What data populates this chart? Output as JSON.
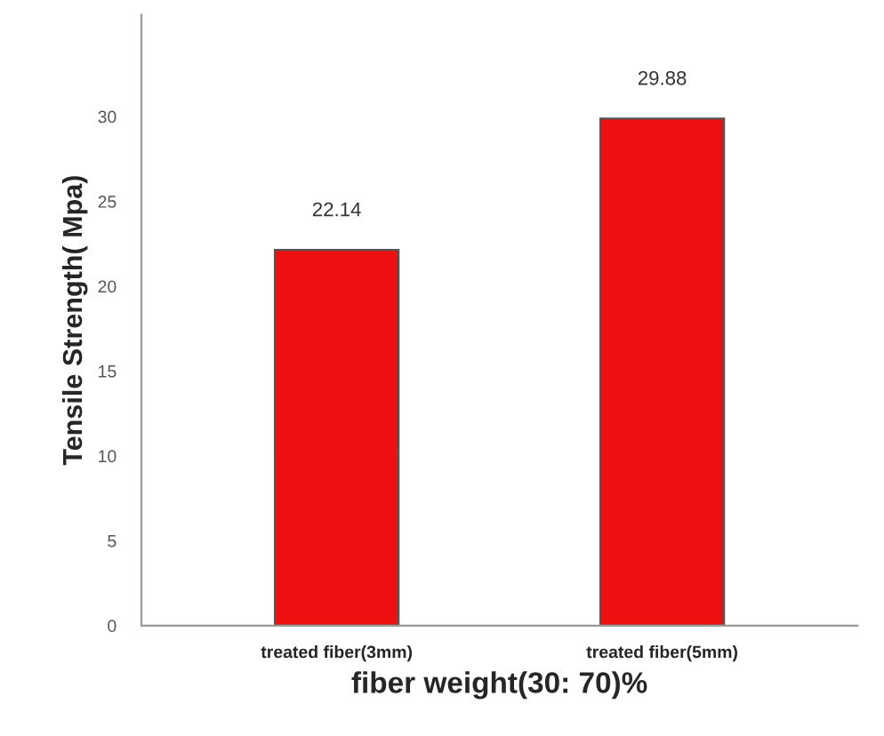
{
  "chart_data": {
    "type": "bar",
    "xlabel": "fiber weight(30: 70)%",
    "ylabel": "Tensile Strength( Mpa)",
    "categories": [
      "treated fiber(3mm)",
      "treated fiber(5mm)"
    ],
    "values": [
      22.14,
      29.88
    ],
    "color": "#ee1111",
    "ylim": [
      0,
      36
    ],
    "yticks": [
      0,
      5,
      10,
      15,
      20,
      25,
      30
    ],
    "grid": false,
    "data_labels": true
  }
}
